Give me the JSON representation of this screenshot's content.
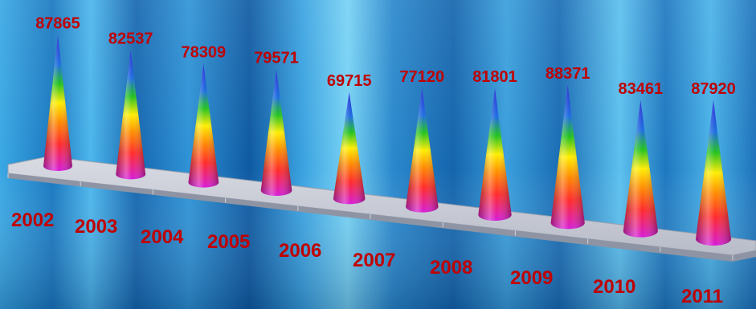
{
  "chart_data": {
    "type": "bar",
    "style": "3d-cone",
    "categories": [
      "2002",
      "2003",
      "2004",
      "2005",
      "2006",
      "2007",
      "2008",
      "2009",
      "2010",
      "2011"
    ],
    "values": [
      87865,
      82537,
      78309,
      79571,
      69715,
      77120,
      81801,
      88371,
      83461,
      87920
    ],
    "value_labels": [
      "87865",
      "82537",
      "78309",
      "79571",
      "69715",
      "77120",
      "81801",
      "88371",
      "83461",
      "87920"
    ],
    "title": "",
    "xlabel": "",
    "ylabel": "",
    "grid": false,
    "legend": "none",
    "colors": {
      "label": "#c00000",
      "cone_top": "#2b2bd6",
      "cone_green": "#22c21e",
      "cone_yellow": "#ffee00",
      "cone_orange": "#ff8a00",
      "cone_red": "#ff2a2a",
      "cone_base": "#d61ad6",
      "floor": "#c9ccd6",
      "background_dark": "#0d62a8",
      "background_light": "#5fc0ee"
    }
  }
}
